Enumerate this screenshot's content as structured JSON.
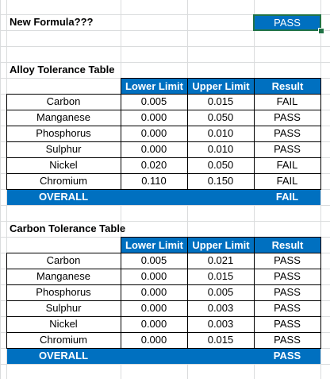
{
  "header": {
    "label": "New Formula???",
    "result": "PASS"
  },
  "alloy": {
    "title": "Alloy Tolerance Table",
    "columns": [
      "Lower Limit",
      "Upper Limit",
      "Result"
    ],
    "rows": [
      {
        "name": "Carbon",
        "lower": "0.005",
        "upper": "0.015",
        "result": "FAIL"
      },
      {
        "name": "Manganese",
        "lower": "0.000",
        "upper": "0.050",
        "result": "PASS"
      },
      {
        "name": "Phosphorus",
        "lower": "0.000",
        "upper": "0.010",
        "result": "PASS"
      },
      {
        "name": "Sulphur",
        "lower": "0.000",
        "upper": "0.010",
        "result": "PASS"
      },
      {
        "name": "Nickel",
        "lower": "0.020",
        "upper": "0.050",
        "result": "FAIL"
      },
      {
        "name": "Chromium",
        "lower": "0.110",
        "upper": "0.150",
        "result": "FAIL"
      }
    ],
    "overall_label": "OVERALL",
    "overall_result": "FAIL"
  },
  "carbon": {
    "title": "Carbon Tolerance Table",
    "columns": [
      "Lower Limit",
      "Upper Limit",
      "Result"
    ],
    "rows": [
      {
        "name": "Carbon",
        "lower": "0.005",
        "upper": "0.021",
        "result": "PASS"
      },
      {
        "name": "Manganese",
        "lower": "0.000",
        "upper": "0.015",
        "result": "PASS"
      },
      {
        "name": "Phosphorus",
        "lower": "0.000",
        "upper": "0.005",
        "result": "PASS"
      },
      {
        "name": "Sulphur",
        "lower": "0.000",
        "upper": "0.003",
        "result": "PASS"
      },
      {
        "name": "Nickel",
        "lower": "0.000",
        "upper": "0.003",
        "result": "PASS"
      },
      {
        "name": "Chromium",
        "lower": "0.000",
        "upper": "0.015",
        "result": "PASS"
      }
    ],
    "overall_label": "OVERALL",
    "overall_result": "PASS"
  },
  "colors": {
    "header_blue": "#0070c0",
    "selection_green": "#217346",
    "gridline": "#dadcdd"
  }
}
